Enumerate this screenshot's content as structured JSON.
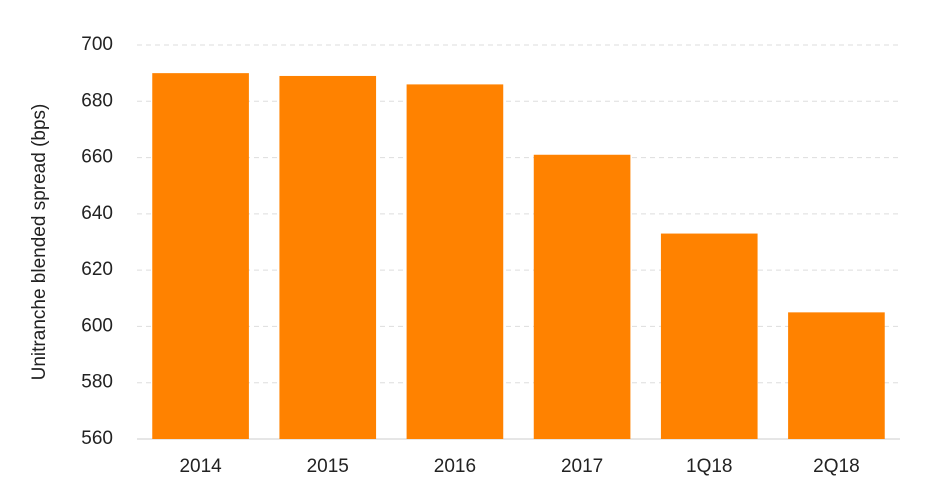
{
  "chart_data": {
    "type": "bar",
    "y_label": "Unitranche blended spread (bps)",
    "categories": [
      "2014",
      "2015",
      "2016",
      "2017",
      "1Q18",
      "2Q18"
    ],
    "values": [
      690,
      689,
      686,
      661,
      633,
      605
    ],
    "color": "#ff8200",
    "ylim": [
      560,
      700
    ],
    "yticks": [
      560,
      580,
      600,
      620,
      640,
      660,
      680,
      700
    ],
    "grid": true
  }
}
